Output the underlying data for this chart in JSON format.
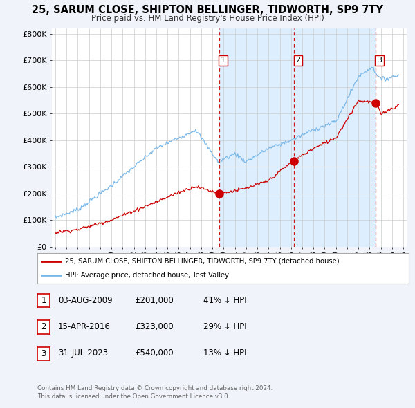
{
  "title": "25, SARUM CLOSE, SHIPTON BELLINGER, TIDWORTH, SP9 7TY",
  "subtitle": "Price paid vs. HM Land Registry's House Price Index (HPI)",
  "ylim": [
    0,
    820000
  ],
  "yticks": [
    0,
    100000,
    200000,
    300000,
    400000,
    500000,
    600000,
    700000,
    800000
  ],
  "ytick_labels": [
    "£0",
    "£100K",
    "£200K",
    "£300K",
    "£400K",
    "£500K",
    "£600K",
    "£700K",
    "£800K"
  ],
  "sale_prices": [
    201000,
    323000,
    540000
  ],
  "sale_labels": [
    "1",
    "2",
    "3"
  ],
  "hpi_color": "#7ab8e8",
  "sale_color": "#cc0000",
  "vline_color": "#cc0000",
  "shade_color": "#ddeeff",
  "background_color": "#f0f4fa",
  "plot_bg_color": "#ffffff",
  "legend_entries": [
    "25, SARUM CLOSE, SHIPTON BELLINGER, TIDWORTH, SP9 7TY (detached house)",
    "HPI: Average price, detached house, Test Valley"
  ],
  "table_rows": [
    [
      "1",
      "03-AUG-2009",
      "£201,000",
      "41% ↓ HPI"
    ],
    [
      "2",
      "15-APR-2016",
      "£323,000",
      "29% ↓ HPI"
    ],
    [
      "3",
      "31-JUL-2023",
      "£540,000",
      "13% ↓ HPI"
    ]
  ],
  "footnote": "Contains HM Land Registry data © Crown copyright and database right 2024.\nThis data is licensed under the Open Government Licence v3.0.",
  "xlim_start": 1994.7,
  "xlim_end": 2026.3
}
